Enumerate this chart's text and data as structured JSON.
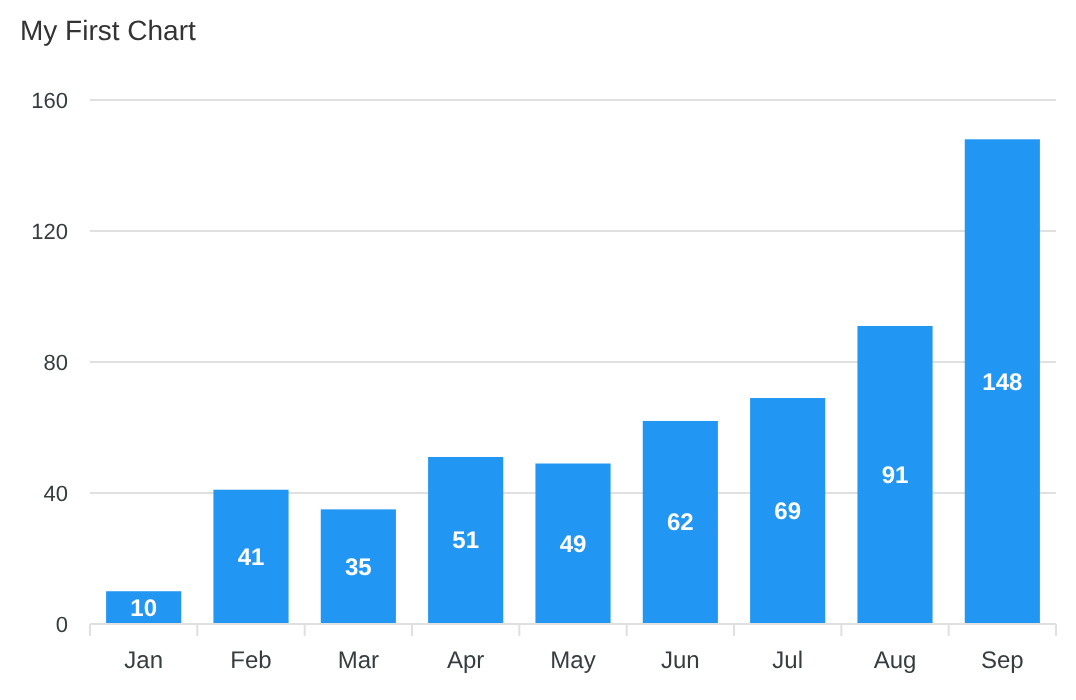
{
  "chart_data": {
    "type": "bar",
    "title": "My First Chart",
    "categories": [
      "Jan",
      "Feb",
      "Mar",
      "Apr",
      "May",
      "Jun",
      "Jul",
      "Aug",
      "Sep"
    ],
    "values": [
      10,
      41,
      35,
      51,
      49,
      62,
      69,
      91,
      148
    ],
    "color": "#2196f3",
    "ylim": [
      0,
      160
    ],
    "yticks": [
      0,
      40,
      80,
      120,
      160
    ],
    "grid": "y",
    "data_labels": true
  }
}
